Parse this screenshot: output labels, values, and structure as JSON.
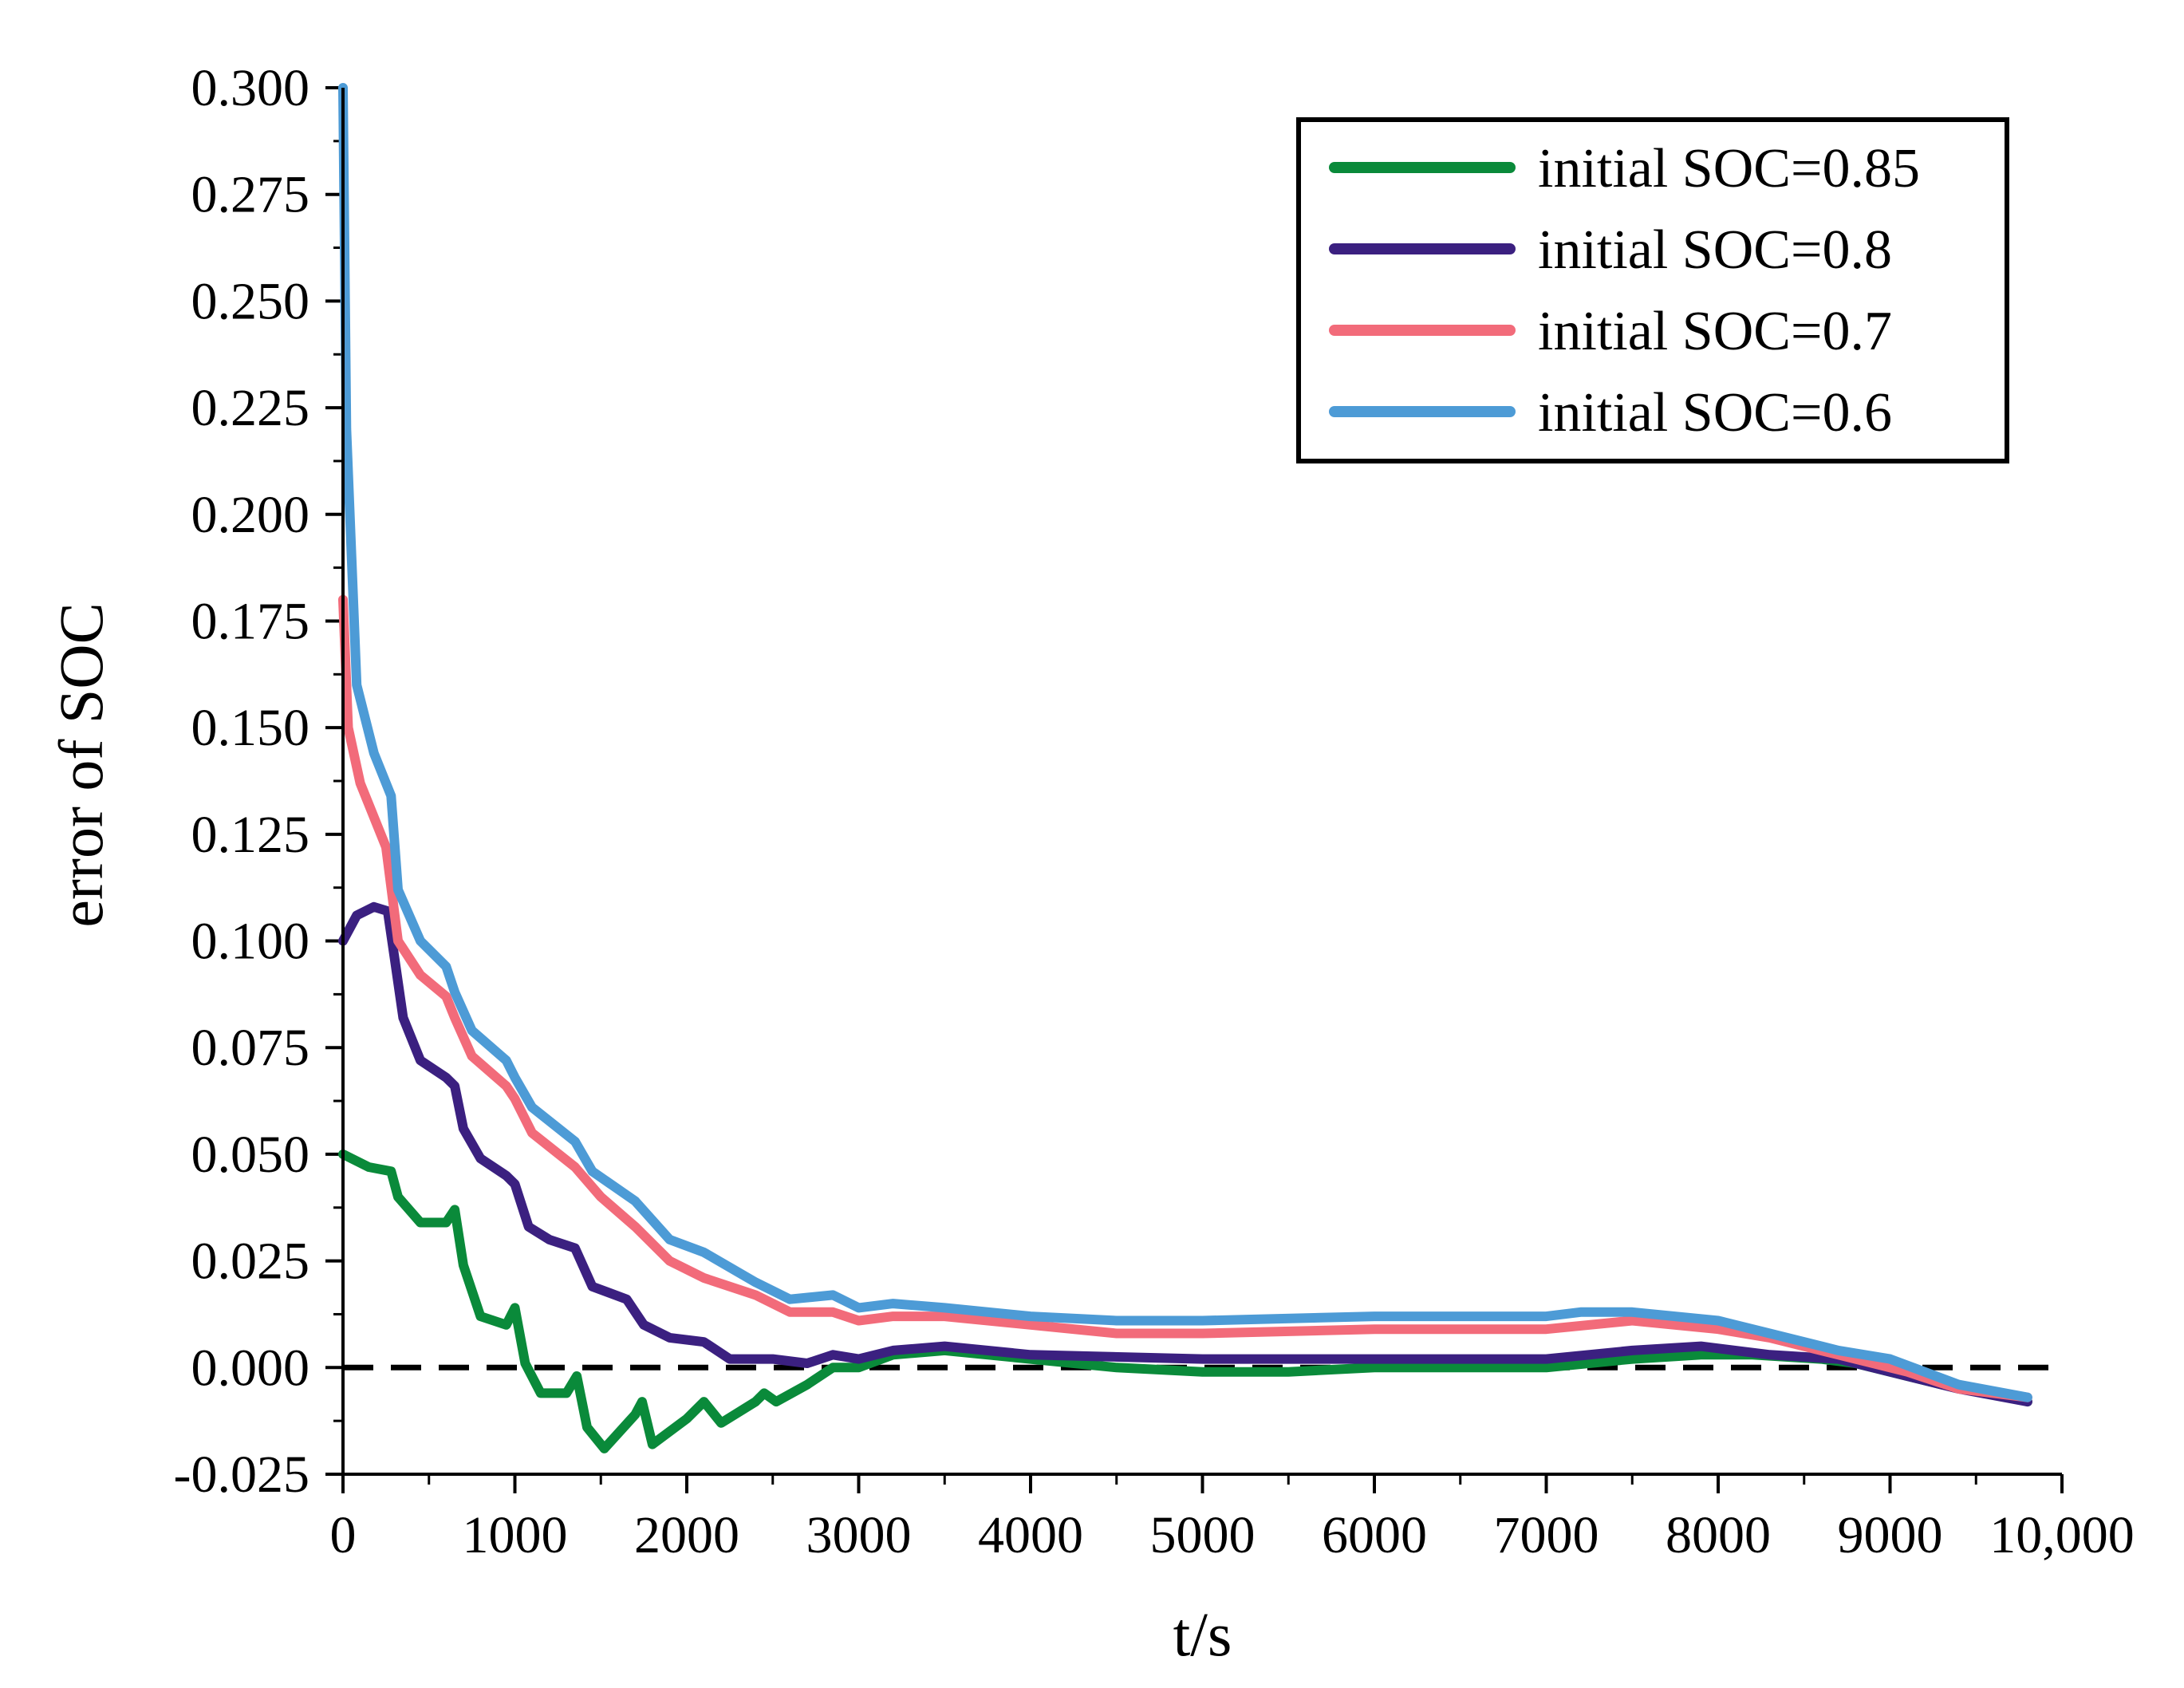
{
  "chart_data": {
    "type": "line",
    "title": "",
    "xlabel": "t/s",
    "ylabel": "error of SOC",
    "xlim": [
      0,
      10000
    ],
    "ylim": [
      -0.025,
      0.3
    ],
    "x_ticks": [
      "0",
      "1000",
      "2000",
      "3000",
      "4000",
      "5000",
      "6000",
      "7000",
      "8000",
      "9000",
      "10,000"
    ],
    "y_ticks": [
      "-0.025",
      "0.000",
      "0.025",
      "0.050",
      "0.075",
      "0.100",
      "0.125",
      "0.150",
      "0.175",
      "0.200",
      "0.225",
      "0.250",
      "0.275",
      "0.300"
    ],
    "legend_position": "top-right",
    "reference_line": {
      "y": 0,
      "style": "dashed",
      "color": "#000000"
    },
    "series": [
      {
        "name": "initial SOC=0.85",
        "color": "#0a8a3a",
        "points": [
          [
            0,
            0.05
          ],
          [
            150,
            0.047
          ],
          [
            280,
            0.046
          ],
          [
            320,
            0.04
          ],
          [
            450,
            0.034
          ],
          [
            600,
            0.034
          ],
          [
            650,
            0.037
          ],
          [
            700,
            0.024
          ],
          [
            800,
            0.012
          ],
          [
            950,
            0.01
          ],
          [
            1000,
            0.014
          ],
          [
            1060,
            0.001
          ],
          [
            1150,
            -0.006
          ],
          [
            1300,
            -0.006
          ],
          [
            1360,
            -0.002
          ],
          [
            1420,
            -0.014
          ],
          [
            1520,
            -0.019
          ],
          [
            1700,
            -0.011
          ],
          [
            1740,
            -0.008
          ],
          [
            1800,
            -0.018
          ],
          [
            2000,
            -0.012
          ],
          [
            2100,
            -0.008
          ],
          [
            2200,
            -0.013
          ],
          [
            2400,
            -0.008
          ],
          [
            2450,
            -0.006
          ],
          [
            2520,
            -0.008
          ],
          [
            2700,
            -0.004
          ],
          [
            2850,
            0.0
          ],
          [
            3000,
            0.0
          ],
          [
            3200,
            0.003
          ],
          [
            3500,
            0.004
          ],
          [
            4000,
            0.002
          ],
          [
            4500,
            0.0
          ],
          [
            5000,
            -0.001
          ],
          [
            5500,
            -0.001
          ],
          [
            6000,
            0.0
          ],
          [
            6500,
            0.0
          ],
          [
            7000,
            0.0
          ],
          [
            7500,
            0.002
          ],
          [
            7900,
            0.003
          ],
          [
            8200,
            0.003
          ],
          [
            8600,
            0.002
          ],
          [
            8800,
            0.001
          ],
          [
            9100,
            -0.002
          ],
          [
            9300,
            -0.004
          ],
          [
            9600,
            -0.006
          ],
          [
            9800,
            -0.008
          ]
        ]
      },
      {
        "name": "initial SOC=0.8",
        "color": "#3b2080",
        "points": [
          [
            0,
            0.1
          ],
          [
            80,
            0.106
          ],
          [
            180,
            0.108
          ],
          [
            260,
            0.107
          ],
          [
            300,
            0.096
          ],
          [
            350,
            0.082
          ],
          [
            450,
            0.072
          ],
          [
            600,
            0.068
          ],
          [
            650,
            0.066
          ],
          [
            700,
            0.056
          ],
          [
            800,
            0.049
          ],
          [
            950,
            0.045
          ],
          [
            1000,
            0.043
          ],
          [
            1080,
            0.033
          ],
          [
            1200,
            0.03
          ],
          [
            1350,
            0.028
          ],
          [
            1450,
            0.019
          ],
          [
            1650,
            0.016
          ],
          [
            1750,
            0.01
          ],
          [
            1900,
            0.007
          ],
          [
            2100,
            0.006
          ],
          [
            2250,
            0.002
          ],
          [
            2500,
            0.002
          ],
          [
            2700,
            0.001
          ],
          [
            2850,
            0.003
          ],
          [
            3000,
            0.002
          ],
          [
            3200,
            0.004
          ],
          [
            3500,
            0.005
          ],
          [
            4000,
            0.003
          ],
          [
            5000,
            0.002
          ],
          [
            6000,
            0.002
          ],
          [
            7000,
            0.002
          ],
          [
            7500,
            0.004
          ],
          [
            7900,
            0.005
          ],
          [
            8300,
            0.003
          ],
          [
            8700,
            0.002
          ],
          [
            9100,
            -0.002
          ],
          [
            9400,
            -0.005
          ],
          [
            9800,
            -0.008
          ]
        ]
      },
      {
        "name": "initial SOC=0.7",
        "color": "#f26b7a",
        "points": [
          [
            0,
            0.18
          ],
          [
            30,
            0.15
          ],
          [
            100,
            0.137
          ],
          [
            250,
            0.122
          ],
          [
            320,
            0.1
          ],
          [
            450,
            0.092
          ],
          [
            600,
            0.087
          ],
          [
            650,
            0.082
          ],
          [
            750,
            0.073
          ],
          [
            950,
            0.066
          ],
          [
            1000,
            0.063
          ],
          [
            1100,
            0.055
          ],
          [
            1350,
            0.047
          ],
          [
            1500,
            0.04
          ],
          [
            1700,
            0.033
          ],
          [
            1900,
            0.025
          ],
          [
            2100,
            0.021
          ],
          [
            2400,
            0.017
          ],
          [
            2600,
            0.013
          ],
          [
            2850,
            0.013
          ],
          [
            3000,
            0.011
          ],
          [
            3200,
            0.012
          ],
          [
            3500,
            0.012
          ],
          [
            4000,
            0.01
          ],
          [
            4500,
            0.008
          ],
          [
            5000,
            0.008
          ],
          [
            6000,
            0.009
          ],
          [
            7000,
            0.009
          ],
          [
            7500,
            0.011
          ],
          [
            8000,
            0.009
          ],
          [
            8300,
            0.007
          ],
          [
            8700,
            0.003
          ],
          [
            9100,
            -0.001
          ],
          [
            9400,
            -0.005
          ],
          [
            9800,
            -0.007
          ]
        ]
      },
      {
        "name": "initial SOC=0.6",
        "color": "#4d9bd6",
        "points": [
          [
            0,
            0.3
          ],
          [
            20,
            0.22
          ],
          [
            80,
            0.16
          ],
          [
            180,
            0.144
          ],
          [
            280,
            0.134
          ],
          [
            320,
            0.112
          ],
          [
            450,
            0.1
          ],
          [
            600,
            0.094
          ],
          [
            650,
            0.088
          ],
          [
            750,
            0.079
          ],
          [
            950,
            0.072
          ],
          [
            1000,
            0.068
          ],
          [
            1100,
            0.061
          ],
          [
            1350,
            0.053
          ],
          [
            1450,
            0.046
          ],
          [
            1700,
            0.039
          ],
          [
            1900,
            0.03
          ],
          [
            2100,
            0.027
          ],
          [
            2400,
            0.02
          ],
          [
            2600,
            0.016
          ],
          [
            2850,
            0.017
          ],
          [
            3000,
            0.014
          ],
          [
            3200,
            0.015
          ],
          [
            3500,
            0.014
          ],
          [
            4000,
            0.012
          ],
          [
            4500,
            0.011
          ],
          [
            5000,
            0.011
          ],
          [
            6000,
            0.012
          ],
          [
            7000,
            0.012
          ],
          [
            7200,
            0.013
          ],
          [
            7500,
            0.013
          ],
          [
            8000,
            0.011
          ],
          [
            8300,
            0.008
          ],
          [
            8700,
            0.004
          ],
          [
            9000,
            0.002
          ],
          [
            9400,
            -0.004
          ],
          [
            9800,
            -0.007
          ]
        ]
      }
    ]
  }
}
